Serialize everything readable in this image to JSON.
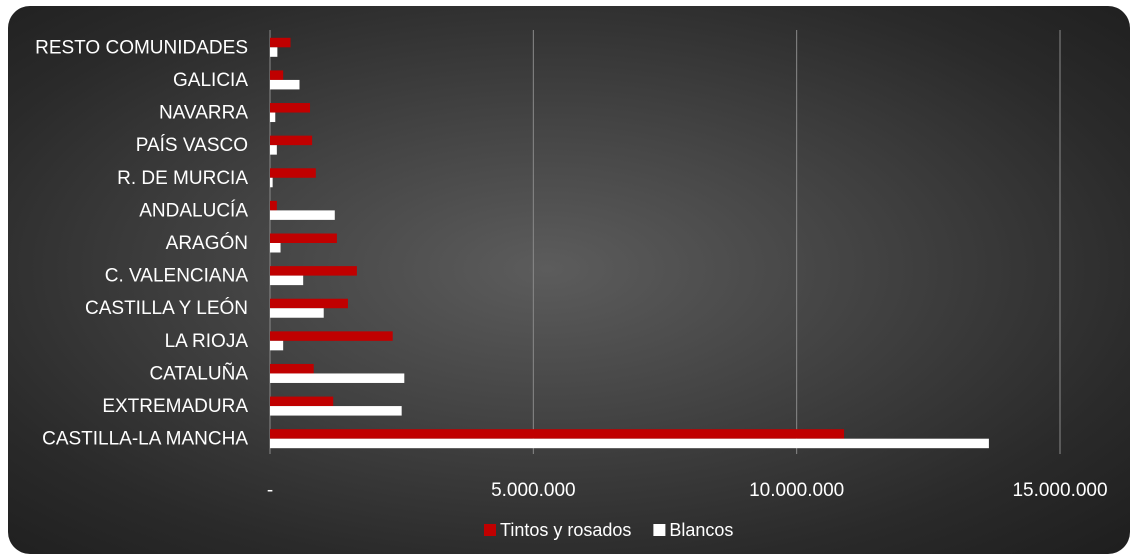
{
  "chart_data": {
    "type": "bar",
    "orientation": "horizontal",
    "categories": [
      "CASTILLA-LA MANCHA",
      "EXTREMADURA",
      "CATALUÑA",
      "LA RIOJA",
      "CASTILLA Y LEÓN",
      "C. VALENCIANA",
      "ARAGÓN",
      "ANDALUCÍA",
      "R. DE MURCIA",
      "PAÍS VASCO",
      "NAVARRA",
      "GALICIA",
      "RESTO COMUNIDADES"
    ],
    "series": [
      {
        "name": "Tintos y rosados",
        "color": "#c00000",
        "values": [
          10900000,
          1200000,
          830000,
          2330000,
          1480000,
          1650000,
          1270000,
          130000,
          870000,
          800000,
          760000,
          250000,
          390000
        ]
      },
      {
        "name": "Blancos",
        "color": "#ffffff",
        "values": [
          13650000,
          2500000,
          2550000,
          250000,
          1020000,
          630000,
          200000,
          1230000,
          50000,
          130000,
          100000,
          560000,
          140000
        ]
      }
    ],
    "x_ticks": [
      "-",
      "5.000.000",
      "10.000.000",
      "15.000.000"
    ],
    "xlim": [
      0,
      15000000
    ],
    "grid": true,
    "legend_position": "bottom"
  }
}
